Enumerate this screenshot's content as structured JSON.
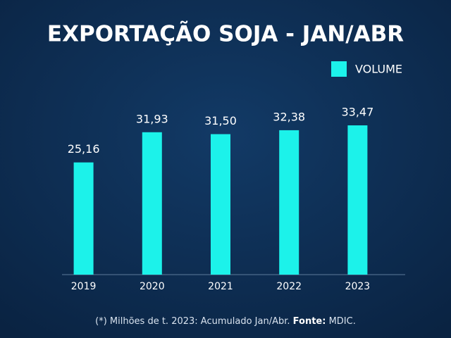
{
  "chart_data": {
    "type": "bar",
    "title": "EXPORTAÇÃO SOJA - JAN/ABR",
    "categories": [
      "2019",
      "2020",
      "2021",
      "2022",
      "2023"
    ],
    "series": [
      {
        "name": "VOLUME",
        "color": "#1cf2ea",
        "values": [
          25.16,
          31.93,
          31.5,
          32.38,
          33.47
        ],
        "value_labels": [
          "25,16",
          "31,93",
          "31,50",
          "32,38",
          "33,47"
        ]
      }
    ],
    "ylim": [
      0,
      36
    ],
    "legend": "top-right",
    "footnote": {
      "note": "(*) Milhões de t. 2023: Acumulado Jan/Abr.",
      "source_label": "Fonte:",
      "source": "MDIC."
    }
  }
}
